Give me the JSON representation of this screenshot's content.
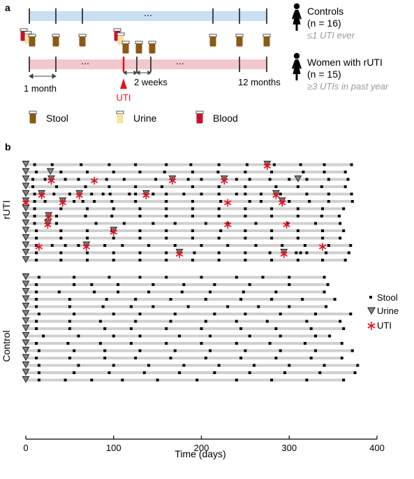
{
  "panel_a": {
    "label": "a",
    "controls": {
      "title": "Controls",
      "n": "(n = 16)",
      "criteria": "≤1 UTI ever"
    },
    "rUTI": {
      "title": "Women with rUTI",
      "n": "(n = 15)",
      "criteria": "≥3 UTIs in past year"
    },
    "ellipsis": "⋯",
    "labels": {
      "month": "1 month",
      "weeks": "2 weeks",
      "year": "12 months",
      "uti": "UTI"
    },
    "legend": [
      {
        "label": "Stool",
        "color": "#8b5a14"
      },
      {
        "label": "Urine",
        "color": "#f7e2a0"
      },
      {
        "label": "Blood",
        "color": "#c8102e"
      }
    ],
    "colors": {
      "controls_bar": "#c9dff3",
      "ruti_bar": "#f3c8cc",
      "uti_arrow": "#e8101e",
      "person": "#000000"
    }
  },
  "panel_b": {
    "label": "b"
  },
  "chart_data": {
    "type": "scatter",
    "xlabel": "Time (days)",
    "xlim": [
      0,
      400
    ],
    "xticks": [
      0,
      100,
      200,
      300,
      400
    ],
    "group_labels": [
      "rUTI",
      "Control"
    ],
    "legend": [
      {
        "label": "Stool",
        "marker": "square",
        "color": "#000000"
      },
      {
        "label": "Urine",
        "marker": "triangle-down",
        "color": "#888888"
      },
      {
        "label": "UTI",
        "marker": "asterisk",
        "color": "#e8101e"
      }
    ],
    "timeline_color": "#d0d0d0",
    "rows": [
      {
        "group": "rUTI",
        "end": 371,
        "stool": [
          10,
          30,
          63,
          95,
          125,
          160,
          188,
          220,
          252,
          283,
          313,
          340,
          371
        ],
        "urine": [
          0,
          275
        ],
        "uti": [
          275
        ]
      },
      {
        "group": "rUTI",
        "end": 364,
        "stool": [
          12,
          40,
          70,
          100,
          130,
          158,
          190,
          219,
          250,
          280,
          316,
          340,
          364
        ],
        "urine": [
          0,
          28
        ],
        "uti": []
      },
      {
        "group": "rUTI",
        "end": 367,
        "stool": [
          8,
          22,
          45,
          60,
          92,
          112,
          148,
          185,
          200,
          240,
          255,
          278,
          300,
          320,
          345,
          367
        ],
        "urine": [
          0,
          29,
          167,
          226,
          310
        ],
        "uti": [
          29,
          78,
          167,
          226
        ]
      },
      {
        "group": "rUTI",
        "end": 364,
        "stool": [
          8,
          35,
          68,
          95,
          125,
          155,
          190,
          220,
          250,
          285,
          310,
          337,
          364
        ],
        "urine": [
          0
        ],
        "uti": []
      },
      {
        "group": "rUTI",
        "end": 371,
        "stool": [
          10,
          32,
          50,
          75,
          88,
          96,
          118,
          125,
          145,
          160,
          180,
          200,
          220,
          240,
          250,
          268,
          290,
          320,
          345,
          371
        ],
        "urine": [
          0,
          18,
          61,
          137,
          285
        ],
        "uti": [
          18,
          61,
          137,
          285
        ]
      },
      {
        "group": "rUTI",
        "end": 372,
        "stool": [
          10,
          22,
          55,
          65,
          78,
          98,
          125,
          160,
          190,
          222,
          255,
          268,
          300,
          323,
          345,
          372
        ],
        "urine": [
          0,
          42,
          292
        ],
        "uti": [
          0,
          42,
          230,
          292
        ]
      },
      {
        "group": "rUTI",
        "end": 362,
        "stool": [
          10,
          40,
          70,
          100,
          130,
          160,
          190,
          220,
          250,
          280,
          310,
          338,
          362
        ],
        "urine": [
          0
        ],
        "uti": []
      },
      {
        "group": "rUTI",
        "end": 357,
        "stool": [
          10,
          35,
          68,
          98,
          130,
          160,
          190,
          220,
          250,
          280,
          310,
          337,
          357
        ],
        "urine": [
          0,
          26
        ],
        "uti": [
          26
        ]
      },
      {
        "group": "rUTI",
        "end": 358,
        "stool": [
          10,
          35,
          80,
          112,
          145,
          170,
          205,
          230,
          262,
          298,
          330,
          358
        ],
        "urine": [
          0,
          25
        ],
        "uti": [
          25,
          230,
          297
        ]
      },
      {
        "group": "rUTI",
        "end": 362,
        "stool": [
          12,
          40,
          70,
          98,
          130,
          160,
          190,
          222,
          250,
          280,
          310,
          338,
          362
        ],
        "urine": [
          0,
          100
        ],
        "uti": [
          100
        ]
      },
      {
        "group": "rUTI",
        "end": 358,
        "stool": [
          12,
          40,
          70,
          100,
          130,
          160,
          190,
          220,
          250,
          280,
          310,
          338,
          358
        ],
        "urine": [
          0
        ],
        "uti": []
      },
      {
        "group": "rUTI",
        "end": 370,
        "stool": [
          12,
          30,
          45,
          60,
          90,
          110,
          140,
          170,
          200,
          230,
          262,
          292,
          318,
          345,
          370
        ],
        "urine": [
          0,
          69
        ],
        "uti": [
          15,
          69,
          338
        ]
      },
      {
        "group": "rUTI",
        "end": 368,
        "stool": [
          12,
          40,
          70,
          100,
          130,
          160,
          192,
          220,
          250,
          278,
          308,
          313,
          320,
          342,
          368
        ],
        "urine": [
          0,
          175,
          294
        ],
        "uti": [
          175,
          294
        ]
      },
      {
        "group": "rUTI",
        "end": 364,
        "stool": [
          12,
          40,
          70,
          100,
          130,
          160,
          190,
          220,
          250,
          280,
          310,
          338,
          364
        ],
        "urine": [
          0
        ],
        "uti": []
      },
      {
        "group": "Control",
        "end": 340,
        "stool": [
          15,
          55,
          95,
          130,
          160,
          200,
          240,
          270,
          300,
          340
        ],
        "urine": [
          0
        ],
        "uti": []
      },
      {
        "group": "Control",
        "end": 344,
        "stool": [
          12,
          55,
          75,
          105,
          145,
          180,
          215,
          255,
          300,
          344
        ],
        "urine": [
          0
        ],
        "uti": []
      },
      {
        "group": "Control",
        "end": 340,
        "stool": [
          12,
          38,
          78,
          105,
          140,
          178,
          210,
          248,
          285,
          340
        ],
        "urine": [
          0
        ],
        "uti": []
      },
      {
        "group": "Control",
        "end": 352,
        "stool": [
          12,
          50,
          92,
          125,
          165,
          205,
          245,
          280,
          315,
          352
        ],
        "urine": [
          0
        ],
        "uti": []
      },
      {
        "group": "Control",
        "end": 342,
        "stool": [
          12,
          50,
          88,
          120,
          145,
          185,
          230,
          265,
          300,
          342
        ],
        "urine": [
          0
        ],
        "uti": []
      },
      {
        "group": "Control",
        "end": 370,
        "stool": [
          15,
          55,
          100,
          130,
          170,
          215,
          250,
          290,
          330,
          370
        ],
        "urine": [
          0
        ],
        "uti": []
      },
      {
        "group": "Control",
        "end": 358,
        "stool": [
          12,
          50,
          85,
          125,
          165,
          205,
          240,
          275,
          320,
          358
        ],
        "urine": [
          0
        ],
        "uti": []
      },
      {
        "group": "Control",
        "end": 362,
        "stool": [
          12,
          50,
          90,
          120,
          160,
          200,
          245,
          285,
          325,
          362
        ],
        "urine": [
          0
        ],
        "uti": []
      },
      {
        "group": "Control",
        "end": 346,
        "stool": [
          20,
          60,
          100,
          130,
          175,
          210,
          255,
          290,
          330,
          346
        ],
        "urine": [
          0
        ],
        "uti": []
      },
      {
        "group": "Control",
        "end": 360,
        "stool": [
          12,
          48,
          85,
          120,
          160,
          200,
          240,
          278,
          318,
          360
        ],
        "urine": [
          0
        ],
        "uti": []
      },
      {
        "group": "Control",
        "end": 372,
        "stool": [
          15,
          55,
          90,
          130,
          170,
          210,
          250,
          290,
          330,
          372
        ],
        "urine": [
          0
        ],
        "uti": []
      },
      {
        "group": "Control",
        "end": 360,
        "stool": [
          12,
          50,
          90,
          125,
          165,
          205,
          245,
          285,
          325,
          360
        ],
        "urine": [
          0
        ],
        "uti": []
      },
      {
        "group": "Control",
        "end": 378,
        "stool": [
          15,
          60,
          100,
          140,
          180,
          220,
          260,
          300,
          340,
          378
        ],
        "urine": [
          0
        ],
        "uti": []
      },
      {
        "group": "Control",
        "end": 375,
        "stool": [
          15,
          55,
          95,
          135,
          175,
          215,
          255,
          295,
          335,
          375
        ],
        "urine": [
          0
        ],
        "uti": []
      },
      {
        "group": "Control",
        "end": 362,
        "stool": [
          15,
          45,
          75,
          110,
          150,
          195,
          240,
          280,
          320,
          362
        ],
        "urine": [
          0
        ],
        "uti": []
      }
    ]
  }
}
